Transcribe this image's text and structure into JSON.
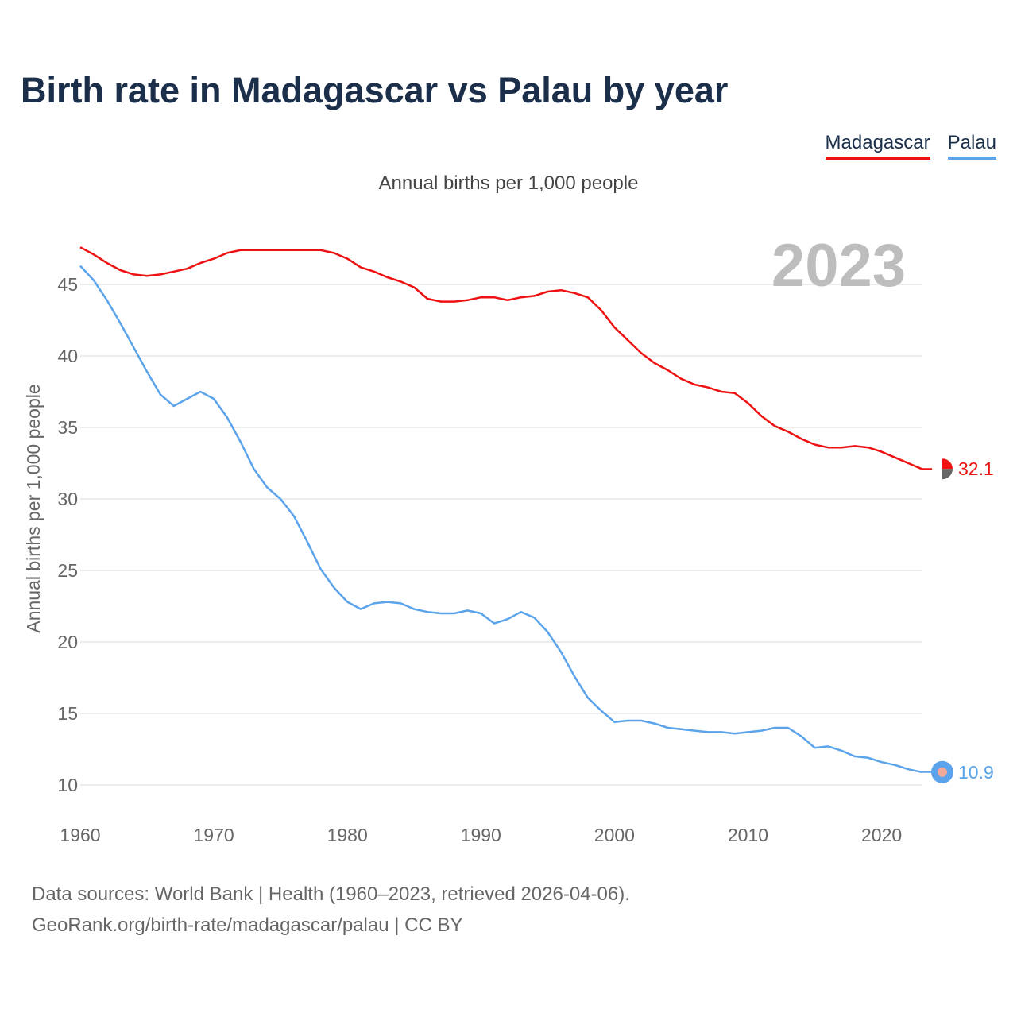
{
  "title": "Birth rate in Madagascar vs Palau by year",
  "subtitle": "Annual births per 1,000 people",
  "legend": [
    {
      "label": "Madagascar",
      "color": "#ee1111"
    },
    {
      "label": "Palau",
      "color": "#5ba3ea"
    }
  ],
  "sources": {
    "line1": "Data sources: World Bank | Health (1960–2023, retrieved 2026-04-06).",
    "line2": "GeoRank.org/birth-rate/madagascar/palau | CC BY"
  },
  "chart_data": {
    "type": "line",
    "title": "Birth rate in Madagascar vs Palau by year",
    "ylabel": "Annual births per 1,000 people",
    "xlabel": "",
    "current_year": "2023",
    "xlim": [
      1960,
      2023
    ],
    "ylim": [
      10,
      47.5
    ],
    "x_ticks": [
      1960,
      1970,
      1980,
      1990,
      2000,
      2010,
      2020
    ],
    "y_ticks": [
      10,
      15,
      20,
      25,
      30,
      35,
      40,
      45
    ],
    "grid": true,
    "x": [
      1960,
      1961,
      1962,
      1963,
      1964,
      1965,
      1966,
      1967,
      1968,
      1969,
      1970,
      1971,
      1972,
      1973,
      1974,
      1975,
      1976,
      1977,
      1978,
      1979,
      1980,
      1981,
      1982,
      1983,
      1984,
      1985,
      1986,
      1987,
      1988,
      1989,
      1990,
      1991,
      1992,
      1993,
      1994,
      1995,
      1996,
      1997,
      1998,
      1999,
      2000,
      2001,
      2002,
      2003,
      2004,
      2005,
      2006,
      2007,
      2008,
      2009,
      2010,
      2011,
      2012,
      2013,
      2014,
      2015,
      2016,
      2017,
      2018,
      2019,
      2020,
      2021,
      2022,
      2023
    ],
    "series": [
      {
        "name": "Madagascar",
        "color": "#ee1111",
        "end_label": "32.1",
        "values": [
          47.6,
          47.1,
          46.5,
          46.0,
          45.7,
          45.6,
          45.7,
          45.9,
          46.1,
          46.5,
          46.8,
          47.2,
          47.4,
          47.4,
          47.4,
          47.4,
          47.4,
          47.4,
          47.4,
          47.2,
          46.8,
          46.2,
          45.9,
          45.5,
          45.2,
          44.8,
          44.0,
          43.8,
          43.8,
          43.9,
          44.1,
          44.1,
          43.9,
          44.1,
          44.2,
          44.5,
          44.6,
          44.4,
          44.1,
          43.2,
          42.0,
          41.1,
          40.2,
          39.5,
          39.0,
          38.4,
          38.0,
          37.8,
          37.5,
          37.4,
          36.7,
          35.8,
          35.1,
          34.7,
          34.2,
          33.8,
          33.6,
          33.6,
          33.7,
          33.6,
          33.3,
          32.9,
          32.5,
          32.1
        ]
      },
      {
        "name": "Palau",
        "color": "#5ba3ea",
        "end_label": "10.9",
        "values": [
          46.3,
          45.3,
          43.9,
          42.3,
          40.6,
          38.9,
          37.3,
          36.5,
          37.0,
          37.5,
          37.0,
          35.7,
          34.0,
          32.1,
          30.8,
          30.0,
          28.8,
          27.0,
          25.1,
          23.8,
          22.8,
          22.3,
          22.7,
          22.8,
          22.7,
          22.3,
          22.1,
          22.0,
          22.0,
          22.2,
          22.0,
          21.3,
          21.6,
          22.1,
          21.7,
          20.7,
          19.3,
          17.6,
          16.1,
          15.2,
          14.4,
          14.5,
          14.5,
          14.3,
          14.0,
          13.9,
          13.8,
          13.7,
          13.7,
          13.6,
          13.7,
          13.8,
          14.0,
          14.0,
          13.4,
          12.6,
          12.7,
          12.4,
          12.0,
          11.9,
          11.6,
          11.4,
          11.1,
          10.9
        ]
      }
    ]
  }
}
